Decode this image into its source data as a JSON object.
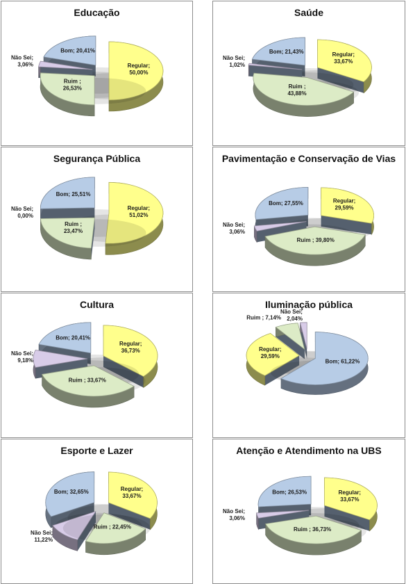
{
  "chart_data": [
    {
      "type": "pie",
      "title": "Educação",
      "slices": [
        {
          "label": "Regular",
          "value": 50.0,
          "text": "Regular;\n50,00%"
        },
        {
          "label": "Ruim",
          "value": 26.53,
          "text": "Ruim ;\n26,53%"
        },
        {
          "label": "Não Sei",
          "value": 3.06,
          "text": "Não Sei;\n3,06%"
        },
        {
          "label": "Bom",
          "value": 20.41,
          "text": "Bom; 20,41%"
        }
      ]
    },
    {
      "type": "pie",
      "title": "Saúde",
      "slices": [
        {
          "label": "Regular",
          "value": 33.67,
          "text": "Regular;\n33,67%"
        },
        {
          "label": "Ruim",
          "value": 43.88,
          "text": "Ruim ;\n43,88%"
        },
        {
          "label": "Não Sei",
          "value": 1.02,
          "text": "Não Sei;\n1,02%"
        },
        {
          "label": "Bom",
          "value": 21.43,
          "text": "Bom; 21,43%"
        }
      ]
    },
    {
      "type": "pie",
      "title": "Segurança Pública",
      "slices": [
        {
          "label": "Regular",
          "value": 51.02,
          "text": "Regular;\n51,02%"
        },
        {
          "label": "Ruim",
          "value": 23.47,
          "text": "Ruim ;\n23,47%"
        },
        {
          "label": "Não Sei",
          "value": 0.0,
          "text": "Não Sei;\n0,00%"
        },
        {
          "label": "Bom",
          "value": 25.51,
          "text": "Bom; 25,51%"
        }
      ]
    },
    {
      "type": "pie",
      "title": "Pavimentação e Conservação de Vias",
      "slices": [
        {
          "label": "Regular",
          "value": 29.59,
          "text": "Regular;\n29,59%"
        },
        {
          "label": "Ruim",
          "value": 39.8,
          "text": "Ruim ; 39,80%"
        },
        {
          "label": "Não Sei",
          "value": 3.06,
          "text": "Não Sei;\n3,06%"
        },
        {
          "label": "Bom",
          "value": 27.55,
          "text": "Bom; 27,55%"
        }
      ]
    },
    {
      "type": "pie",
      "title": "Cultura",
      "slices": [
        {
          "label": "Regular",
          "value": 36.73,
          "text": "Regular;\n36,73%"
        },
        {
          "label": "Ruim",
          "value": 33.67,
          "text": "Ruim ; 33,67%"
        },
        {
          "label": "Não Sei",
          "value": 9.18,
          "text": "Não Sei;\n9,18%"
        },
        {
          "label": "Bom",
          "value": 20.41,
          "text": "Bom; 20,41%"
        }
      ]
    },
    {
      "type": "pie",
      "title": "Iluminação pública",
      "slices": [
        {
          "label": "Bom",
          "value": 61.22,
          "text": "Bom; 61,22%"
        },
        {
          "label": "Regular",
          "value": 29.59,
          "text": "Regular;\n29,59%"
        },
        {
          "label": "Ruim",
          "value": 7.14,
          "text": "Ruim ; 7,14%"
        },
        {
          "label": "Não Sei",
          "value": 2.04,
          "text": "Não Sei;\n2,04%"
        }
      ]
    },
    {
      "type": "pie",
      "title": "Esporte e Lazer",
      "slices": [
        {
          "label": "Regular",
          "value": 33.67,
          "text": "Regular;\n33,67%"
        },
        {
          "label": "Ruim",
          "value": 22.45,
          "text": "Ruim ; 22,45%"
        },
        {
          "label": "Não Sei",
          "value": 11.22,
          "text": "Não Sei;\n11,22%"
        },
        {
          "label": "Bom",
          "value": 32.65,
          "text": "Bom; 32,65%"
        }
      ]
    },
    {
      "type": "pie",
      "title": "Atenção e Atendimento na UBS",
      "slices": [
        {
          "label": "Regular",
          "value": 33.67,
          "text": "Regular;\n33,67%"
        },
        {
          "label": "Ruim",
          "value": 36.73,
          "text": "Ruim ; 36,73%"
        },
        {
          "label": "Não Sei",
          "value": 3.06,
          "text": "Não Sei;\n3,06%"
        },
        {
          "label": "Bom",
          "value": 26.53,
          "text": "Bom; 26,53%"
        }
      ]
    }
  ],
  "colors": {
    "Regular": "#ffff8c",
    "Ruim": "#dcebc6",
    "Não Sei": "#d8cce8",
    "Bom": "#b7cce6"
  }
}
